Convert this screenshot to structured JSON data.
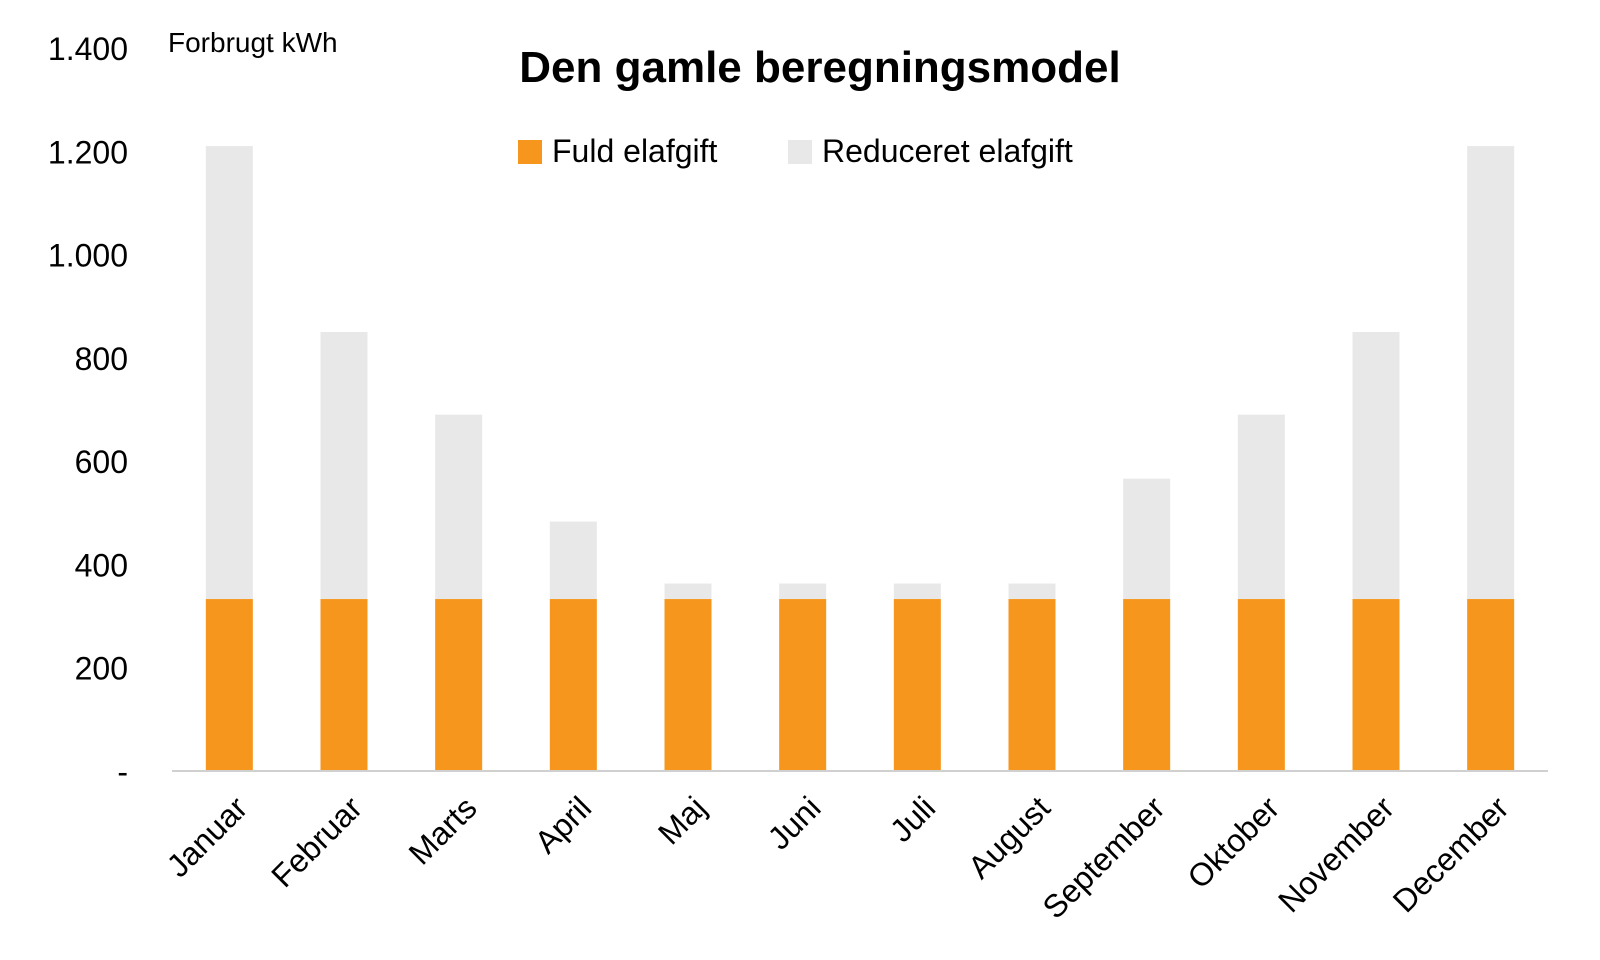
{
  "chart_data": {
    "type": "bar",
    "stacked": true,
    "title": "Den gamle beregningsmodel",
    "ylabel": "Forbrugt kWh",
    "xlabel": "",
    "ylim": [
      0,
      1400
    ],
    "yticks": [
      0,
      200,
      400,
      600,
      800,
      1000,
      1200,
      1400
    ],
    "ytick_labels": [
      "-",
      "200",
      "400",
      "600",
      "800",
      "1.000",
      "1.200",
      "1.400"
    ],
    "categories": [
      "Januar",
      "Februar",
      "Marts",
      "April",
      "Maj",
      "Juni",
      "Juli",
      "August",
      "September",
      "Oktober",
      "November",
      "December"
    ],
    "series": [
      {
        "name": "Fuld elafgift",
        "color": "#F7961D",
        "values": [
          333,
          333,
          333,
          333,
          333,
          333,
          333,
          333,
          333,
          333,
          333,
          333
        ]
      },
      {
        "name": "Reduceret elafgift",
        "color": "#E8E8E8",
        "values": [
          877,
          517,
          357,
          150,
          30,
          30,
          30,
          30,
          233,
          357,
          517,
          877
        ]
      }
    ],
    "legend_position": "top-center",
    "grid": false
  }
}
